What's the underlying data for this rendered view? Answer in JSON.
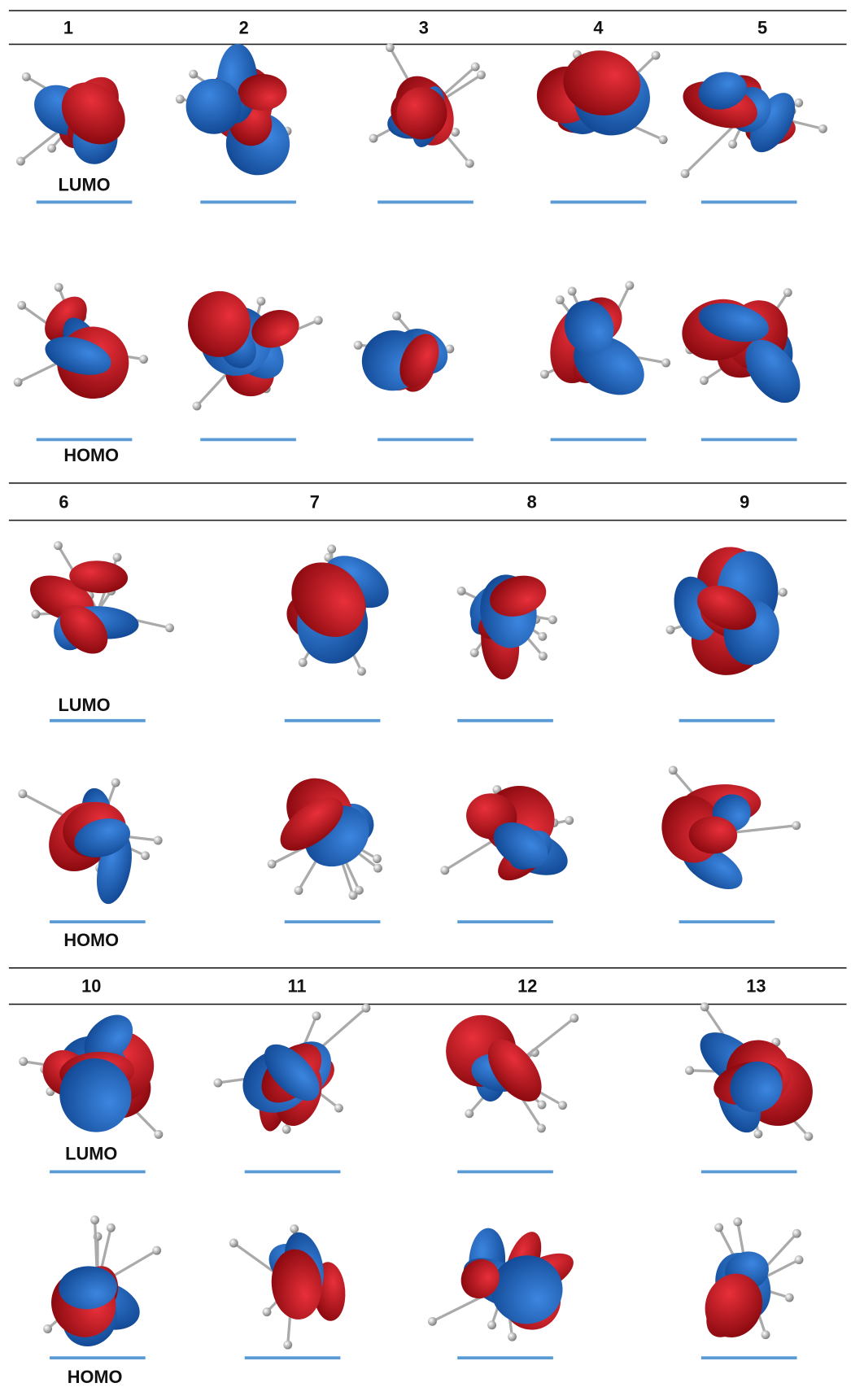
{
  "sections": [
    {
      "labels": [
        "1",
        "2",
        "3",
        "4",
        "5"
      ],
      "lumo": "LUMO",
      "homo": "HOMO"
    },
    {
      "labels": [
        "6",
        "7",
        "8",
        "9"
      ],
      "lumo": "LUMO",
      "homo": "HOMO"
    },
    {
      "labels": [
        "10",
        "11",
        "12",
        "13"
      ],
      "lumo": "LUMO",
      "homo": "HOMO"
    }
  ]
}
